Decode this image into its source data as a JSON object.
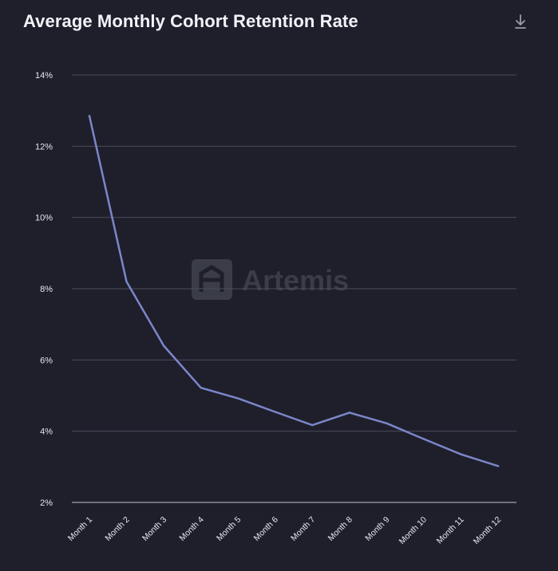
{
  "header": {
    "title": "Average Monthly Cohort Retention Rate",
    "download_icon": "download-icon"
  },
  "watermark": {
    "text": "Artemis",
    "logo_icon": "artemis-logo-icon"
  },
  "colors": {
    "background": "#1e1f2b",
    "line": "#7b86c9",
    "grid": "#4a4c5a",
    "axis": "#8a8c96",
    "text": "#e6e7ee"
  },
  "chart_data": {
    "type": "line",
    "title": "Average Monthly Cohort Retention Rate",
    "xlabel": "",
    "ylabel": "",
    "categories": [
      "Month 1",
      "Month 2",
      "Month 3",
      "Month 4",
      "Month 5",
      "Month 6",
      "Month 7",
      "Month 8",
      "Month 9",
      "Month 10",
      "Month 11",
      "Month 12"
    ],
    "series": [
      {
        "values": [
          12.85,
          8.2,
          6.4,
          5.22,
          4.92,
          4.54,
          4.17,
          4.52,
          4.22,
          3.78,
          3.35,
          3.02
        ]
      }
    ],
    "yticks": [
      "2%",
      "4%",
      "6%",
      "8%",
      "10%",
      "12%",
      "14%"
    ],
    "ylim": [
      2,
      14
    ],
    "grid": true,
    "legend": "none"
  }
}
